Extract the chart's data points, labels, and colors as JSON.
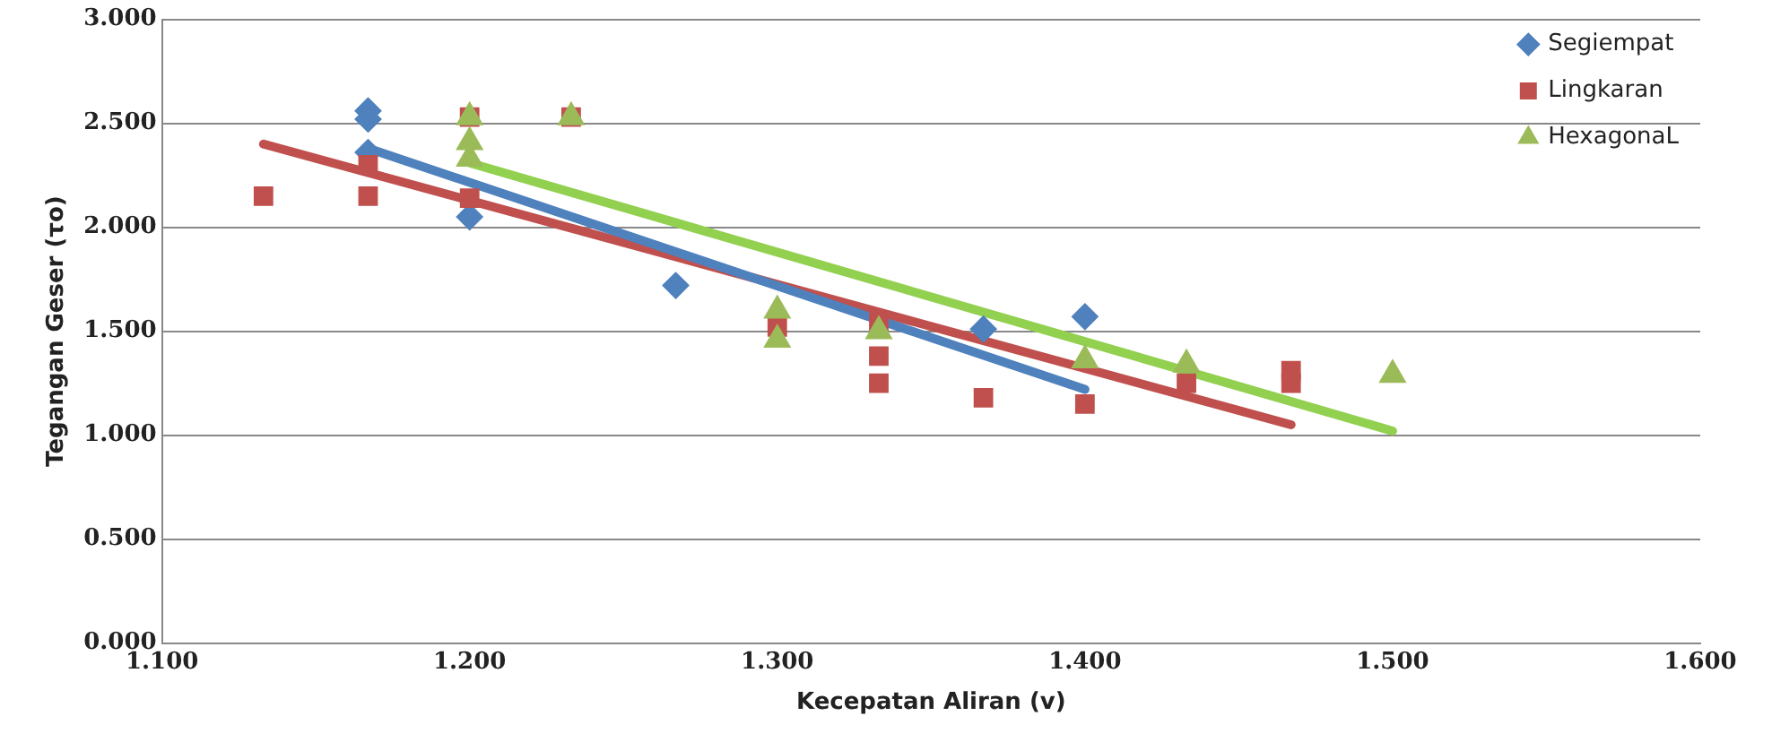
{
  "chart_data": {
    "type": "scatter",
    "xlabel": "Kecepatan Aliran (v)",
    "ylabel": "Tegangan Geser (τo)",
    "xlim": [
      1.1,
      1.6
    ],
    "xticks": [
      {
        "value": 1.1,
        "label": "1.100"
      },
      {
        "value": 1.2,
        "label": "1.200"
      },
      {
        "value": 1.3,
        "label": "1.300"
      },
      {
        "value": 1.4,
        "label": "1.400"
      },
      {
        "value": 1.5,
        "label": "1.500"
      },
      {
        "value": 1.6,
        "label": "1.600"
      }
    ],
    "ylim": [
      0,
      3
    ],
    "yticks": [
      {
        "value": 0,
        "label": "0.000"
      },
      {
        "value": 0.5,
        "label": "0.500"
      },
      {
        "value": 1,
        "label": "1.000"
      },
      {
        "value": 1.5,
        "label": "1.500"
      },
      {
        "value": 2,
        "label": "2.000"
      },
      {
        "value": 2.5,
        "label": "2.500"
      },
      {
        "value": 3,
        "label": "3.000"
      }
    ],
    "grid": "y",
    "legend": "top right",
    "series": [
      {
        "name": "Segiempat",
        "color": "#4f81bd",
        "marker": "diamond",
        "x": [
          1.167,
          1.167,
          1.167,
          1.2,
          1.267,
          1.367,
          1.4
        ],
        "values": [
          2.56,
          2.52,
          2.36,
          2.05,
          1.72,
          1.51,
          1.57
        ]
      },
      {
        "name": "Lingkaran",
        "color": "#c0504d",
        "marker": "square",
        "x": [
          1.133,
          1.167,
          1.167,
          1.2,
          1.2,
          1.233,
          1.3,
          1.333,
          1.333,
          1.333,
          1.367,
          1.4,
          1.433,
          1.467,
          1.467
        ],
        "values": [
          2.15,
          2.3,
          2.15,
          2.53,
          2.14,
          2.53,
          1.52,
          1.55,
          1.38,
          1.25,
          1.18,
          1.15,
          1.25,
          1.31,
          1.25
        ]
      },
      {
        "name": "HexagonaL",
        "color": "#9bbb59",
        "marker": "triangle",
        "x": [
          1.2,
          1.2,
          1.2,
          1.233,
          1.3,
          1.3,
          1.333,
          1.4,
          1.433,
          1.5
        ],
        "values": [
          2.53,
          2.41,
          2.33,
          2.53,
          1.6,
          1.46,
          1.5,
          1.36,
          1.34,
          1.29
        ]
      },
      {
        "type": "line",
        "color": "#4f81bd",
        "marker": "none",
        "x": [
          1.167,
          1.4
        ],
        "values": [
          2.38,
          1.22
        ]
      },
      {
        "type": "line",
        "color": "#c0504d",
        "marker": "none",
        "x": [
          1.133,
          1.467
        ],
        "values": [
          2.4,
          1.05
        ]
      },
      {
        "type": "line",
        "color": "#92d050",
        "marker": "none",
        "x": [
          1.2,
          1.5
        ],
        "values": [
          2.31,
          1.02
        ]
      }
    ]
  }
}
